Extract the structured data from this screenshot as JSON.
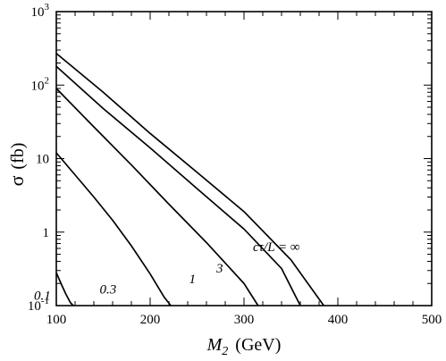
{
  "chart_data": {
    "type": "line",
    "x_axis": {
      "min": 100,
      "max": 500,
      "scale": "linear",
      "ticks": [
        100,
        200,
        300,
        400,
        500
      ],
      "label_text": "M",
      "label_subscript": "2",
      "label_units": "(GeV)"
    },
    "y_axis": {
      "min": 0.1,
      "max": 1000,
      "scale": "log",
      "ticks": [
        {
          "value": 0.1,
          "base": "10",
          "exp": "-1"
        },
        {
          "value": 1,
          "text": "1"
        },
        {
          "value": 10,
          "text": "10"
        },
        {
          "value": 100,
          "base": "10",
          "exp": "2"
        },
        {
          "value": 1000,
          "base": "10",
          "exp": "3"
        }
      ],
      "label_symbol": "σ",
      "label_units": "(fb)"
    },
    "grid": false,
    "series": [
      {
        "name": "0.1",
        "points": [
          [
            100,
            0.28
          ],
          [
            105,
            0.2
          ],
          [
            110,
            0.145
          ],
          [
            115,
            0.11
          ],
          [
            118,
            0.1
          ]
        ]
      },
      {
        "name": "0.3",
        "points": [
          [
            100,
            12
          ],
          [
            120,
            6.0
          ],
          [
            140,
            3.0
          ],
          [
            160,
            1.45
          ],
          [
            180,
            0.65
          ],
          [
            200,
            0.27
          ],
          [
            215,
            0.13
          ],
          [
            222,
            0.1
          ]
        ]
      },
      {
        "name": "1",
        "points": [
          [
            100,
            90
          ],
          [
            140,
            27
          ],
          [
            180,
            8.2
          ],
          [
            220,
            2.4
          ],
          [
            260,
            0.72
          ],
          [
            300,
            0.2
          ],
          [
            315,
            0.1
          ]
        ]
      },
      {
        "name": "3",
        "points": [
          [
            100,
            180
          ],
          [
            150,
            48
          ],
          [
            200,
            14
          ],
          [
            250,
            3.9
          ],
          [
            300,
            1.1
          ],
          [
            340,
            0.32
          ],
          [
            360,
            0.1
          ]
        ]
      },
      {
        "name": "cτ/L = ∞",
        "points": [
          [
            100,
            270
          ],
          [
            150,
            80
          ],
          [
            200,
            22
          ],
          [
            250,
            6.5
          ],
          [
            300,
            1.9
          ],
          [
            350,
            0.42
          ],
          [
            385,
            0.1
          ]
        ]
      }
    ]
  }
}
